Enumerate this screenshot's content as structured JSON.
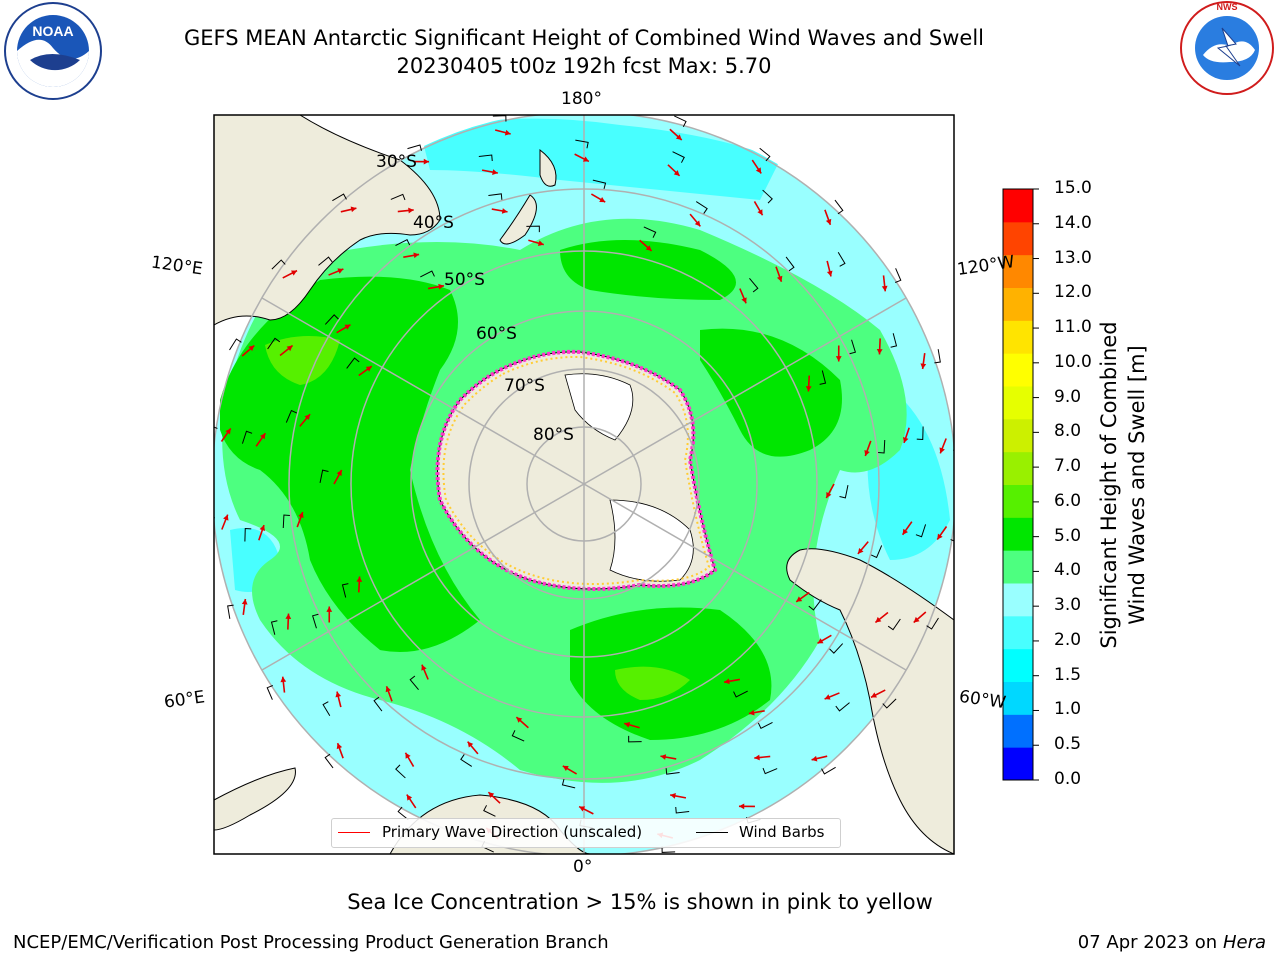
{
  "title": {
    "line1": "GEFS MEAN Antarctic Significant Height of Combined Wind Waves and Swell",
    "line2": "20230405 t00z 192h fcst   Max: 5.70"
  },
  "map": {
    "lon_labels": {
      "top": "180°",
      "bottom": "0°",
      "left_upper": "120°E",
      "left_lower": "60°E",
      "right_upper": "120°W",
      "right_lower": "60°W"
    },
    "lat_labels": [
      "30°S",
      "40°S",
      "50°S",
      "60°S",
      "70°S",
      "80°S"
    ],
    "colors": {
      "land": "#eeecdc",
      "ice_shelf": "#ffffff",
      "ring_line": "#b0b0b0",
      "wave_arrow": "#ff0000",
      "wind_barb": "#000000",
      "sea_ice_edge": [
        "#ff33cc",
        "#ffcc33"
      ]
    }
  },
  "legend": {
    "primary_wave": "Primary Wave Direction (unscaled)",
    "wind_barbs": "Wind Barbs"
  },
  "colorbar": {
    "label_line1": "Significant Height of Combined",
    "label_line2": "Wind Waves and Swell [m]",
    "ticks": [
      "0.0",
      "0.5",
      "1.0",
      "1.5",
      "2.0",
      "3.0",
      "4.0",
      "5.0",
      "6.0",
      "7.0",
      "8.0",
      "9.0",
      "10.0",
      "11.0",
      "12.0",
      "13.0",
      "14.0",
      "15.0"
    ],
    "colors": [
      "#0000ff",
      "#0070ff",
      "#00d8ff",
      "#00ffff",
      "#48ffff",
      "#99ffff",
      "#4dff80",
      "#00e600",
      "#56f000",
      "#99f000",
      "#ccf000",
      "#e6ff00",
      "#ffff00",
      "#ffe400",
      "#ffb200",
      "#ff8800",
      "#ff4400",
      "#ff0000"
    ]
  },
  "note": "Sea Ice Concentration > 15% is shown in pink to yellow",
  "footer": {
    "left": "NCEP/EMC/Verification Post Processing Product Generation Branch",
    "date": "07 Apr 2023 on ",
    "machine": "Hera"
  },
  "logos": {
    "noaa": "NOAA",
    "nws": "NATIONAL WEATHER SERVICE"
  }
}
